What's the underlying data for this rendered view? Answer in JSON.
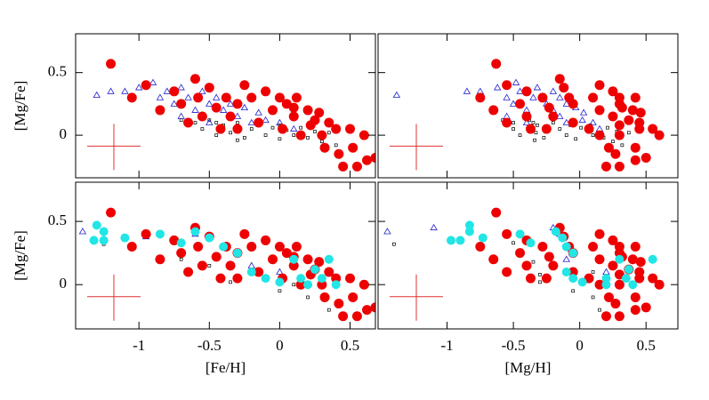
{
  "chart_data": [
    {
      "type": "scatter",
      "ylabel": "[Mg/Fe]",
      "xlim": [
        -1.45,
        0.68
      ],
      "ylim": [
        -0.34,
        0.81
      ],
      "xticks": [
        -1,
        -0.5,
        0,
        0.5
      ],
      "yticks": [
        0,
        0.5
      ],
      "xtick_labels": false,
      "ytick_labels": true,
      "series": [
        {
          "marker": "square",
          "color": "#000000",
          "x": [
            -0.6,
            -0.55,
            -0.5,
            -0.45,
            -0.4,
            -0.35,
            -0.3,
            -0.25,
            -0.2,
            -0.15,
            -0.1,
            -0.05,
            0,
            0.05,
            0.1,
            0.15,
            0.2,
            0.25,
            0.3,
            0.35,
            -0.45,
            -0.3,
            0,
            0.4,
            -0.7
          ],
          "y": [
            0.1,
            0.05,
            0.12,
            0,
            0.08,
            0.02,
            0.1,
            -0.02,
            0.05,
            0.08,
            0,
            0.06,
            -0.03,
            0.04,
            0,
            0.06,
            -0.02,
            0.03,
            -0.05,
            0.02,
            0.1,
            -0.04,
            0.08,
            -0.08,
            0.12
          ]
        },
        {
          "marker": "triangle",
          "color": "#1f1fd0",
          "x": [
            -1.3,
            -1.2,
            -1.1,
            -1,
            -0.9,
            -0.85,
            -0.8,
            -0.75,
            -0.7,
            -0.65,
            -0.6,
            -0.55,
            -0.5,
            -0.45,
            -0.4,
            -0.35,
            -0.3,
            -0.25,
            -0.2,
            -0.15,
            -0.1,
            0,
            0.1,
            -0.7,
            -0.5
          ],
          "y": [
            0.32,
            0.35,
            0.35,
            0.38,
            0.42,
            0.3,
            0.35,
            0.25,
            0.38,
            0.3,
            0.2,
            0.35,
            0.25,
            0.3,
            0.2,
            0.25,
            0.15,
            0.22,
            0.1,
            0.18,
            0.12,
            0.1,
            0.05,
            0.15,
            0.1
          ]
        },
        {
          "marker": "circle",
          "color": "#ee0000",
          "x": [
            -1.2,
            -1.05,
            -0.95,
            -0.85,
            -0.75,
            -0.7,
            -0.6,
            -0.58,
            -0.55,
            -0.5,
            -0.45,
            -0.42,
            -0.38,
            -0.35,
            -0.3,
            -0.25,
            -0.2,
            -0.15,
            -0.1,
            -0.05,
            0,
            0.02,
            0.05,
            0.1,
            0.12,
            0.15,
            0.2,
            0.22,
            0.25,
            0.3,
            0.32,
            0.35,
            0.4,
            0.42,
            0.45,
            0.5,
            0.52,
            0.55,
            0.6,
            0.62,
            0.68,
            -0.65,
            -0.3,
            0.1,
            0.28
          ],
          "y": [
            0.57,
            0.3,
            0.4,
            0.2,
            0.35,
            0.25,
            0.45,
            0.3,
            0.15,
            0.38,
            0.22,
            0.05,
            0.3,
            0.15,
            0.25,
            0.4,
            0.3,
            0.1,
            0.35,
            0.2,
            0.3,
            0.05,
            0.25,
            0.15,
            0.3,
            0,
            0.2,
            0.08,
            0.12,
            0,
            -0.1,
            0.1,
            0.05,
            -0.15,
            -0.25,
            0.05,
            -0.1,
            -0.25,
            0,
            -0.2,
            -0.18,
            0.1,
            0.05,
            0.22,
            0.18
          ]
        }
      ]
    },
    {
      "type": "scatter",
      "xlim": [
        -1.52,
        0.74
      ],
      "ylim": [
        -0.34,
        0.81
      ],
      "xticks": [
        -1,
        -0.5,
        0,
        0.5
      ],
      "yticks": [
        0,
        0.5
      ],
      "xtick_labels": false,
      "ytick_labels": false,
      "series": [
        {
          "marker": "square",
          "color": "#000000",
          "x": [
            -0.5,
            -0.5,
            -0.38,
            -0.45,
            -0.32,
            -0.33,
            -0.2,
            -0.27,
            -0.15,
            -0.07,
            -0.1,
            0.01,
            -0.03,
            0.09,
            0.1,
            0.21,
            0.18,
            0.28,
            0.25,
            0.37,
            -0.35,
            -0.34,
            0.08,
            0.32,
            -0.58
          ],
          "y": [
            0.1,
            0.05,
            0.12,
            0,
            0.08,
            0.02,
            0.1,
            -0.02,
            0.05,
            0.08,
            0,
            0.06,
            -0.03,
            0.04,
            0,
            0.06,
            -0.02,
            0.03,
            -0.05,
            0.02,
            0.1,
            -0.04,
            0.08,
            -0.08,
            0.12
          ]
        },
        {
          "marker": "triangle",
          "color": "#1f1fd0",
          "x": [
            -1.38,
            -0.85,
            -0.75,
            -0.62,
            -0.48,
            -0.55,
            -0.45,
            -0.5,
            -0.32,
            -0.35,
            -0.4,
            -0.2,
            -0.25,
            -0.15,
            -0.2,
            -0.1,
            -0.15,
            -0.03,
            -0.1,
            0.03,
            0.02,
            0.1,
            0.15,
            -0.55,
            -0.4
          ],
          "y": [
            0.32,
            0.35,
            0.35,
            0.38,
            0.42,
            0.3,
            0.35,
            0.25,
            0.38,
            0.3,
            0.2,
            0.35,
            0.25,
            0.3,
            0.2,
            0.25,
            0.15,
            0.22,
            0.1,
            0.18,
            0.12,
            0.1,
            0.05,
            0.15,
            0.1
          ]
        },
        {
          "marker": "circle",
          "color": "#ee0000",
          "x": [
            -0.63,
            -0.75,
            -0.55,
            -0.65,
            -0.4,
            -0.45,
            -0.15,
            -0.28,
            -0.4,
            -0.12,
            -0.23,
            -0.37,
            -0.08,
            -0.2,
            -0.05,
            0.15,
            0.1,
            -0.05,
            0.25,
            0.15,
            0.3,
            0.07,
            0.3,
            0.25,
            0.42,
            0.15,
            0.4,
            0.3,
            0.37,
            0.3,
            0.22,
            0.45,
            0.45,
            0.27,
            0.2,
            0.55,
            0.42,
            0.3,
            0.6,
            0.42,
            0.5,
            -0.55,
            -0.25,
            0.32,
            0.46
          ],
          "y": [
            0.57,
            0.3,
            0.4,
            0.2,
            0.35,
            0.25,
            0.45,
            0.3,
            0.15,
            0.38,
            0.22,
            0.05,
            0.3,
            0.15,
            0.25,
            0.4,
            0.3,
            0.1,
            0.35,
            0.2,
            0.3,
            0.05,
            0.25,
            0.15,
            0.3,
            0,
            0.2,
            0.08,
            0.12,
            0,
            -0.1,
            0.1,
            0.05,
            -0.15,
            -0.25,
            0.05,
            -0.1,
            -0.25,
            0,
            -0.2,
            -0.18,
            0.1,
            0.05,
            0.22,
            0.18
          ]
        }
      ]
    },
    {
      "type": "scatter",
      "xlabel": "[Fe/H]",
      "ylabel": "[Mg/Fe]",
      "xlim": [
        -1.45,
        0.68
      ],
      "ylim": [
        -0.35,
        0.81
      ],
      "xticks": [
        -1,
        -0.5,
        0,
        0.5
      ],
      "yticks": [
        0,
        0.5
      ],
      "xtick_labels": true,
      "ytick_labels": true,
      "series": [
        {
          "marker": "square",
          "color": "#000000",
          "x": [
            -1.25,
            -0.7,
            -0.5,
            -0.3,
            0,
            0.1,
            0.2,
            0.35,
            -0.35,
            -0.1
          ],
          "y": [
            0.32,
            0.2,
            0.15,
            0.05,
            -0.05,
            0,
            -0.1,
            -0.2,
            0.02,
            0.05
          ]
        },
        {
          "marker": "triangle",
          "color": "#1f1fd0",
          "x": [
            -1.4,
            -0.95,
            -0.6,
            -0.4,
            -0.2,
            0
          ],
          "y": [
            0.42,
            0.38,
            0.4,
            0.3,
            0.15,
            0.1
          ]
        },
        {
          "marker": "circle",
          "color": "#ee0000",
          "x": [
            -1.2,
            -1.05,
            -0.95,
            -0.85,
            -0.75,
            -0.7,
            -0.6,
            -0.58,
            -0.55,
            -0.5,
            -0.45,
            -0.42,
            -0.38,
            -0.35,
            -0.3,
            -0.25,
            -0.2,
            -0.15,
            -0.1,
            -0.05,
            0,
            0.02,
            0.05,
            0.1,
            0.12,
            0.15,
            0.2,
            0.22,
            0.25,
            0.3,
            0.32,
            0.35,
            0.4,
            0.42,
            0.45,
            0.5,
            0.52,
            0.55,
            0.6,
            0.62,
            0.68,
            -0.65,
            -0.3,
            0.1,
            0.28
          ],
          "y": [
            0.57,
            0.3,
            0.4,
            0.2,
            0.35,
            0.25,
            0.45,
            0.3,
            0.15,
            0.38,
            0.22,
            0.05,
            0.3,
            0.15,
            0.25,
            0.4,
            0.3,
            0.1,
            0.35,
            0.2,
            0.3,
            0.05,
            0.25,
            0.15,
            0.3,
            0,
            0.2,
            0.08,
            0.12,
            0,
            -0.1,
            0.1,
            0.05,
            -0.15,
            -0.25,
            0.05,
            -0.1,
            -0.25,
            0,
            -0.2,
            -0.18,
            0.1,
            0.05,
            0.22,
            0.18
          ]
        },
        {
          "marker": "circle",
          "color": "#22e5e5",
          "x": [
            -1.3,
            -1.32,
            -1.25,
            -1.25,
            -1.1,
            -0.85,
            -0.7,
            -0.6,
            -0.5,
            -0.4,
            -0.3,
            -0.2,
            -0.1,
            0,
            0.1,
            0.15,
            0.25,
            0.3,
            0.35,
            0.4,
            0.2
          ],
          "y": [
            0.47,
            0.35,
            0.42,
            0.35,
            0.37,
            0.4,
            0.33,
            0.42,
            0.37,
            0.3,
            0.25,
            0.1,
            0.05,
            0.02,
            0.2,
            0.05,
            0.12,
            0.05,
            0.2,
            0,
            0
          ]
        }
      ]
    },
    {
      "type": "scatter",
      "xlabel": "[Mg/H]",
      "xlim": [
        -1.52,
        0.74
      ],
      "ylim": [
        -0.35,
        0.81
      ],
      "xticks": [
        -1,
        -0.5,
        0,
        0.5
      ],
      "yticks": [
        0,
        0.5
      ],
      "xtick_labels": true,
      "ytick_labels": false,
      "series": [
        {
          "marker": "square",
          "color": "#000000",
          "x": [
            -1.4,
            -0.5,
            -0.35,
            -0.3,
            -0.05,
            0.1,
            0.1,
            0.15,
            -0.3,
            0.5
          ],
          "y": [
            0.32,
            0.33,
            0.18,
            0.08,
            -0.05,
            0.1,
            -0.1,
            -0.2,
            0.02,
            -0.2
          ]
        },
        {
          "marker": "triangle",
          "color": "#1f1fd0",
          "x": [
            -1.45,
            -1.1,
            -0.2,
            -0.15,
            -0.1,
            0.2
          ],
          "y": [
            0.42,
            0.45,
            0.45,
            0.4,
            0.2,
            0.1
          ]
        },
        {
          "marker": "circle",
          "color": "#ee0000",
          "x": [
            -0.63,
            -0.75,
            -0.55,
            -0.65,
            -0.4,
            -0.45,
            -0.15,
            -0.28,
            -0.4,
            -0.12,
            -0.23,
            -0.37,
            -0.08,
            -0.2,
            -0.05,
            0.15,
            0.1,
            -0.05,
            0.25,
            0.15,
            0.3,
            0.07,
            0.3,
            0.25,
            0.42,
            0.15,
            0.4,
            0.3,
            0.37,
            0.3,
            0.22,
            0.45,
            0.45,
            0.27,
            0.2,
            0.55,
            0.42,
            0.3,
            0.6,
            0.42,
            0.5,
            -0.55,
            -0.25,
            0.32,
            0.46
          ],
          "y": [
            0.57,
            0.3,
            0.4,
            0.2,
            0.35,
            0.25,
            0.45,
            0.3,
            0.15,
            0.38,
            0.22,
            0.05,
            0.3,
            0.15,
            0.25,
            0.4,
            0.3,
            0.1,
            0.35,
            0.2,
            0.3,
            0.05,
            0.25,
            0.15,
            0.3,
            0,
            0.2,
            0.08,
            0.12,
            0,
            -0.1,
            0.1,
            0.05,
            -0.15,
            -0.25,
            0.05,
            -0.1,
            -0.25,
            0,
            -0.2,
            -0.18,
            0.1,
            0.05,
            0.22,
            0.18
          ]
        },
        {
          "marker": "circle",
          "color": "#22e5e5",
          "x": [
            -0.83,
            -0.97,
            -0.83,
            -0.9,
            -0.73,
            -0.45,
            -0.37,
            -0.18,
            -0.13,
            -0.1,
            -0.05,
            -0.1,
            -0.05,
            0.02,
            0.3,
            0.2,
            0.37,
            0.35,
            0.55,
            0.4,
            0.2
          ],
          "y": [
            0.47,
            0.35,
            0.42,
            0.35,
            0.37,
            0.4,
            0.33,
            0.42,
            0.37,
            0.3,
            0.25,
            0.1,
            0.05,
            0.02,
            0.2,
            0.05,
            0.12,
            0.05,
            0.2,
            0,
            0
          ]
        }
      ]
    }
  ]
}
